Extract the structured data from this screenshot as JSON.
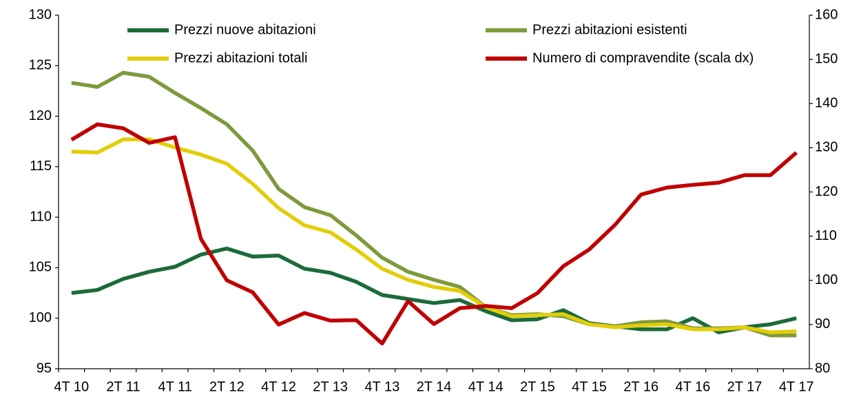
{
  "chart_data": {
    "type": "line",
    "categories": [
      "4T 10",
      null,
      "2T 11",
      null,
      "4T 11",
      null,
      "2T 12",
      null,
      "4T 12",
      null,
      "2T 13",
      null,
      "4T 13",
      null,
      "2T 14",
      null,
      "4T 14",
      null,
      "2T 15",
      null,
      "4T 15",
      null,
      "2T 16",
      null,
      "4T 16",
      null,
      "2T 17",
      null,
      "4T 17"
    ],
    "series": [
      {
        "name": "Prezzi nuove abitazioni",
        "color": "#1b6b3a",
        "values": [
          102.5,
          102.8,
          103.9,
          104.6,
          105.1,
          106.3,
          106.9,
          106.1,
          106.2,
          104.9,
          104.5,
          103.6,
          102.3,
          101.9,
          101.5,
          101.8,
          100.7,
          99.8,
          99.9,
          100.8,
          99.5,
          99.2,
          98.9,
          98.9,
          100.0,
          98.6,
          99.1,
          99.4,
          100.0
        ]
      },
      {
        "name": "Prezzi abitazioni esistenti",
        "color": "#7d9a3c",
        "values": [
          123.3,
          122.9,
          124.3,
          123.9,
          122.3,
          120.8,
          119.2,
          116.6,
          112.8,
          111.0,
          110.2,
          108.2,
          106.0,
          104.6,
          103.8,
          103.1,
          101.1,
          100.3,
          100.4,
          100.2,
          99.4,
          99.2,
          99.6,
          99.7,
          99.0,
          99.0,
          99.1,
          98.3,
          98.3
        ]
      },
      {
        "name": "Prezzi abitazioni totali",
        "color": "#e3cd0a",
        "values": [
          116.5,
          116.4,
          117.7,
          117.7,
          116.9,
          116.2,
          115.3,
          113.3,
          110.9,
          109.2,
          108.5,
          106.8,
          104.9,
          103.8,
          103.1,
          102.7,
          101.1,
          100.2,
          100.3,
          100.4,
          99.4,
          99.1,
          99.3,
          99.4,
          98.9,
          98.9,
          99.1,
          98.6,
          98.7
        ]
      },
      {
        "name": "Numero di compravendite (scala dx)",
        "color": "#c00000",
        "axis": "y2",
        "values": [
          131.8,
          135.3,
          134.4,
          131.1,
          132.4,
          109.4,
          100.0,
          97.3,
          90.0,
          92.6,
          90.9,
          91.0,
          85.7,
          95.3,
          90.1,
          93.7,
          94.2,
          93.7,
          97.1,
          103.2,
          107.0,
          112.6,
          119.4,
          121.0,
          121.6,
          122.1,
          123.8,
          123.8,
          128.9
        ]
      }
    ],
    "ylim": [
      95,
      130
    ],
    "yticks": [
      95,
      100,
      105,
      110,
      115,
      120,
      125,
      130
    ],
    "y2lim": [
      80,
      160
    ],
    "y2ticks": [
      80,
      90,
      100,
      110,
      120,
      130,
      140,
      150,
      160
    ],
    "grid": false
  }
}
